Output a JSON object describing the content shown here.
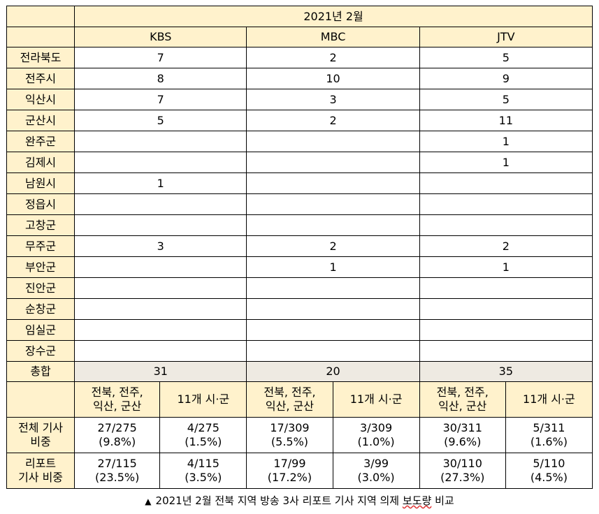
{
  "header": {
    "period": "2021년 2월",
    "stations": [
      "KBS",
      "MBC",
      "JTV"
    ]
  },
  "rows": [
    {
      "region": "전라북도",
      "values": [
        "7",
        "2",
        "5"
      ]
    },
    {
      "region": "전주시",
      "values": [
        "8",
        "10",
        "9"
      ]
    },
    {
      "region": "익산시",
      "values": [
        "7",
        "3",
        "5"
      ]
    },
    {
      "region": "군산시",
      "values": [
        "5",
        "2",
        "11"
      ]
    },
    {
      "region": "완주군",
      "values": [
        "",
        "",
        "1"
      ]
    },
    {
      "region": "김제시",
      "values": [
        "",
        "",
        "1"
      ]
    },
    {
      "region": "남원시",
      "values": [
        "1",
        "",
        ""
      ]
    },
    {
      "region": "정읍시",
      "values": [
        "",
        "",
        ""
      ]
    },
    {
      "region": "고창군",
      "values": [
        "",
        "",
        ""
      ]
    },
    {
      "region": "무주군",
      "values": [
        "3",
        "2",
        "2"
      ]
    },
    {
      "region": "부안군",
      "values": [
        "",
        "1",
        "1"
      ]
    },
    {
      "region": "진안군",
      "values": [
        "",
        "",
        ""
      ]
    },
    {
      "region": "순창군",
      "values": [
        "",
        "",
        ""
      ]
    },
    {
      "region": "임실군",
      "values": [
        "",
        "",
        ""
      ]
    },
    {
      "region": "장수군",
      "values": [
        "",
        "",
        ""
      ]
    }
  ],
  "total": {
    "label": "총합",
    "values": [
      "31",
      "20",
      "35"
    ]
  },
  "subheaders": {
    "core": [
      "전북, 전주,",
      "익산, 군산"
    ],
    "other": "11개 시·군"
  },
  "stats": [
    {
      "label": [
        "전체 기사",
        "비중"
      ],
      "cells": [
        [
          "27/275",
          "(9.8%)"
        ],
        [
          "4/275",
          "(1.5%)"
        ],
        [
          "17/309",
          "(5.5%)"
        ],
        [
          "3/309",
          "(1.0%)"
        ],
        [
          "30/311",
          "(9.6%)"
        ],
        [
          "5/311",
          "(1.6%)"
        ]
      ]
    },
    {
      "label": [
        "리포트",
        "기사 비중"
      ],
      "cells": [
        [
          "27/115",
          "(23.5%)"
        ],
        [
          "4/115",
          "(3.5%)"
        ],
        [
          "17/99",
          "(17.2%)"
        ],
        [
          "3/99",
          "(3.0%)"
        ],
        [
          "30/110",
          "(27.3%)"
        ],
        [
          "5/110",
          "(4.5%)"
        ]
      ]
    }
  ],
  "caption": {
    "marker": "▲",
    "text": "2021년 2월 전북 지역 방송 3사 리포트 기사 지역 의제",
    "underlined": "보도량",
    "tail": "비교"
  }
}
